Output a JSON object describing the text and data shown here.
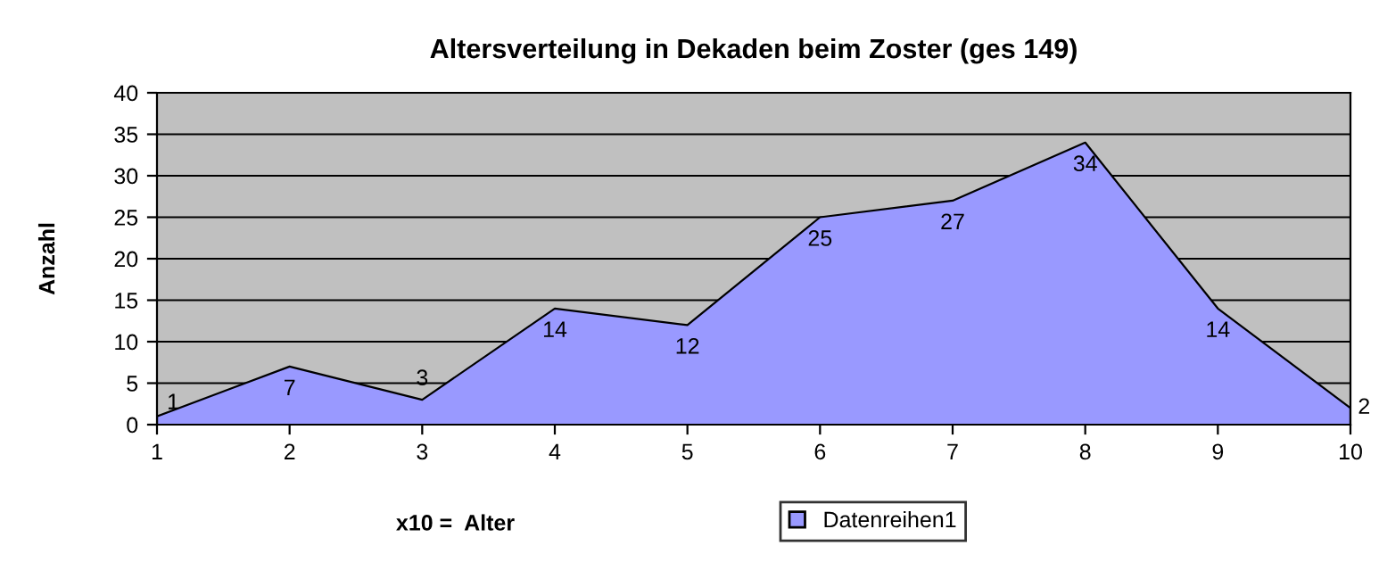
{
  "chart_data": {
    "type": "area",
    "title": "Altersverteilung in Dekaden beim Zoster (ges 149)",
    "xlabel": "x10 =  Alter",
    "ylabel": "Anzahl",
    "x": [
      1,
      2,
      3,
      4,
      5,
      6,
      7,
      8,
      9,
      10
    ],
    "series": [
      {
        "name": "Datenreihen1",
        "color": "#9999ff",
        "values": [
          1,
          7,
          3,
          14,
          12,
          25,
          27,
          34,
          14,
          2
        ]
      }
    ],
    "xlim": [
      1,
      10
    ],
    "xticks": [
      1,
      2,
      3,
      4,
      5,
      6,
      7,
      8,
      9,
      10
    ],
    "ylim": [
      0,
      40
    ],
    "yticks": [
      0,
      5,
      10,
      15,
      20,
      25,
      30,
      35,
      40
    ],
    "grid": "y",
    "legend": "bottom",
    "data_labels": true
  }
}
